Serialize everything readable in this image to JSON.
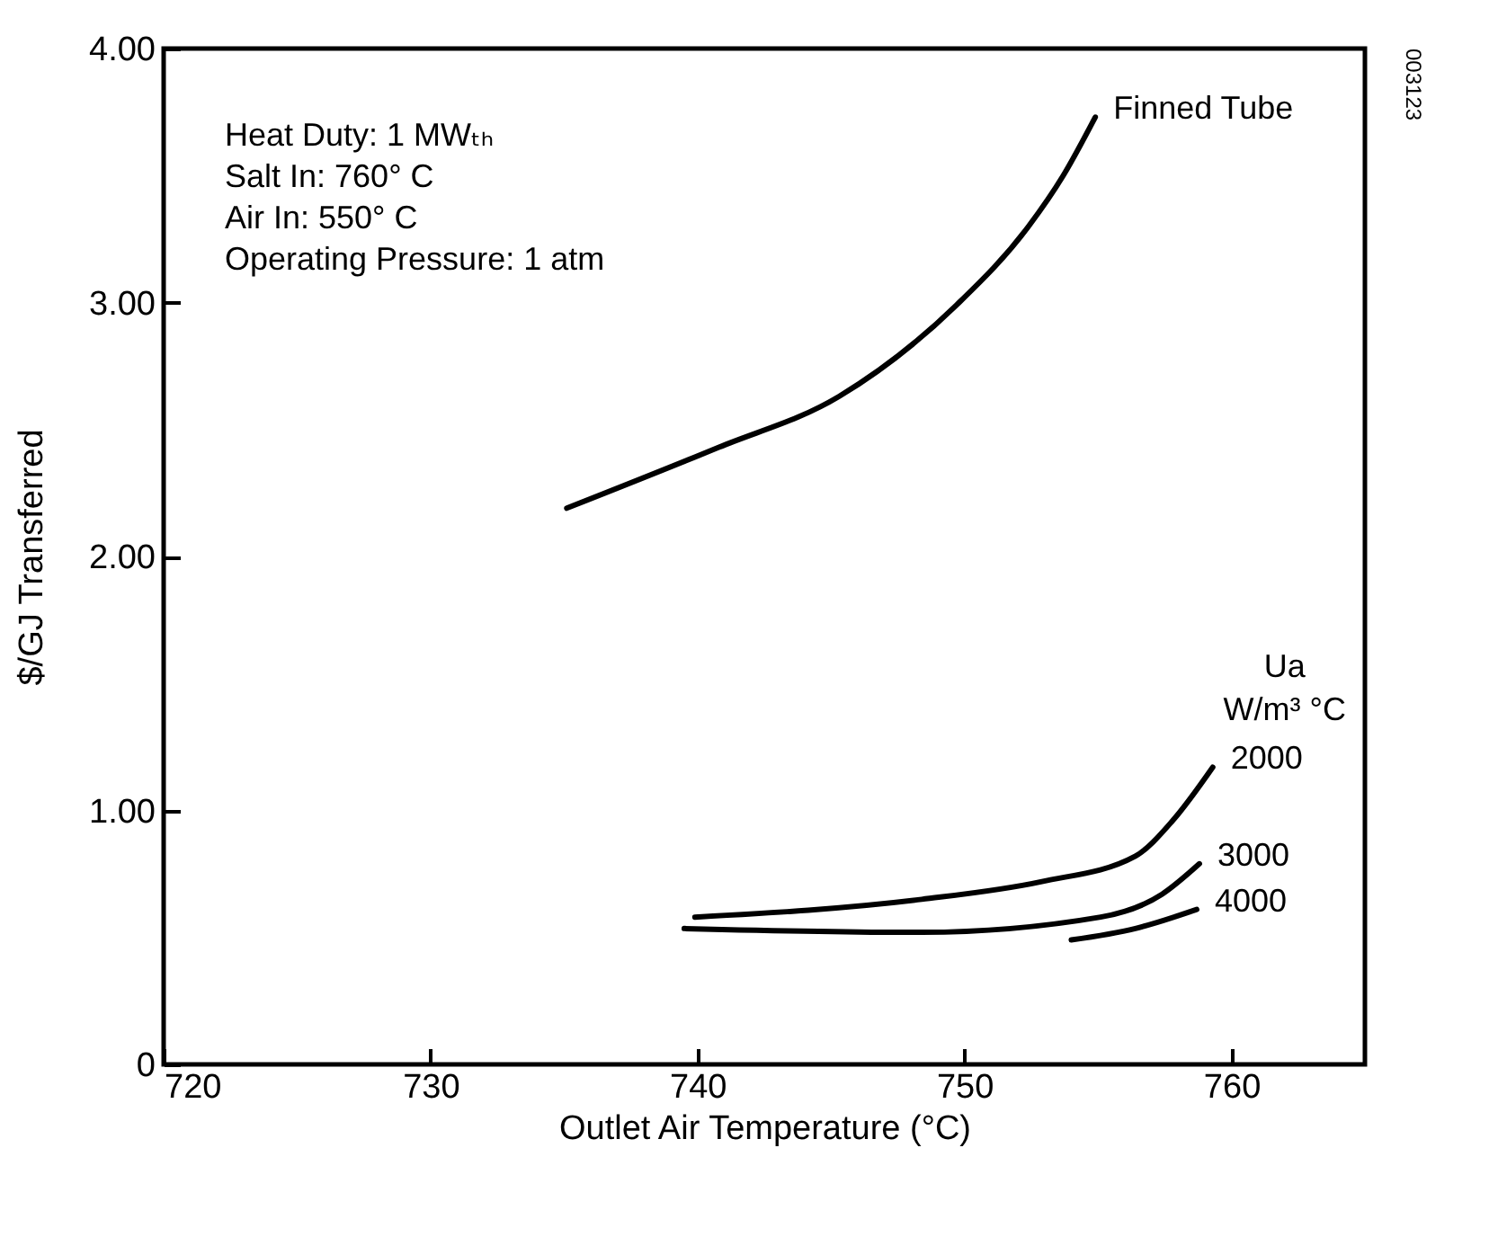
{
  "chart_data": {
    "type": "line",
    "xlabel": "Outlet Air Temperature (°C)",
    "ylabel": "$/GJ Transferred",
    "xlim": [
      720,
      765
    ],
    "xticks": [
      720,
      730,
      740,
      750,
      760
    ],
    "ylim": [
      0,
      4
    ],
    "yticks": [
      0,
      {
        "value": 1,
        "label": "1.00"
      },
      {
        "value": 2,
        "label": "2.00"
      },
      {
        "value": 3,
        "label": "3.00"
      },
      {
        "value": 4,
        "label": "4.00"
      }
    ],
    "legend_title": "Ua\nW/m³ °C",
    "legend": false,
    "grid": false,
    "marker": "none",
    "line_style": "solid",
    "annotations": [
      "Heat Duty: 1 MWₜₕ",
      "Salt In: 760° C",
      "Air In: 550° C",
      "Operating Pressure: 1 atm",
      "003123"
    ],
    "series": [
      {
        "name": "Finned Tube",
        "color": "#000000",
        "x": [
          735.1,
          740.8,
          745.3,
          749.7,
          752.4,
          753.7,
          754.9
        ],
        "values": [
          2.19,
          2.43,
          2.63,
          2.99,
          3.3,
          3.5,
          3.73
        ]
      },
      {
        "name": "2000",
        "color": "#000000",
        "x": [
          739.9,
          748.4,
          752.9,
          756.4,
          757.8,
          759.3
        ],
        "values": [
          0.58,
          0.65,
          0.72,
          0.82,
          0.96,
          1.17
        ]
      },
      {
        "name": "3000",
        "color": "#000000",
        "x": [
          739.5,
          748.4,
          755.1,
          757.4,
          758.8
        ],
        "values": [
          0.535,
          0.52,
          0.58,
          0.67,
          0.79
        ]
      },
      {
        "name": "4000",
        "color": "#000000",
        "x": [
          754,
          756.4,
          758.7
        ],
        "values": [
          0.49,
          0.535,
          0.61
        ]
      }
    ]
  }
}
